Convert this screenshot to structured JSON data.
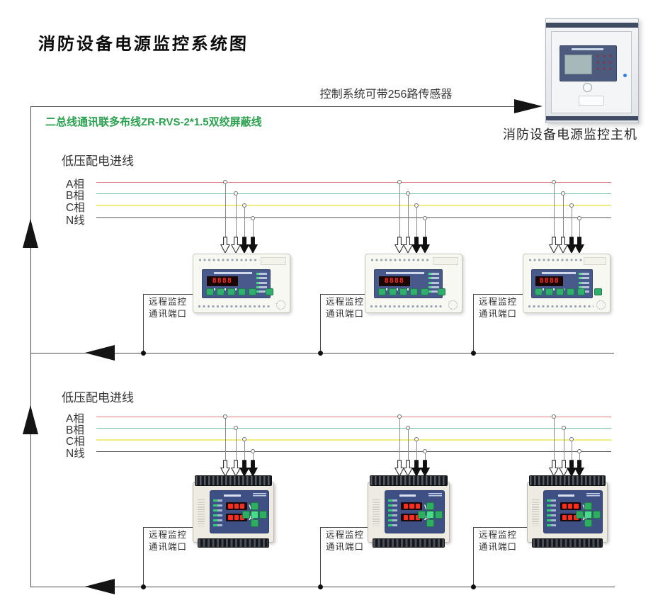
{
  "title": "消防设备电源监控系统图",
  "header": {
    "sensor_capacity_note": "控制系统可带256路传感器",
    "bus_wiring_label": "二总线通讯联多布线ZR-RVS-2*1.5双绞屏蔽线"
  },
  "main_unit": {
    "label": "消防设备电源监控主机"
  },
  "device_row1": {
    "display_value": "8888"
  },
  "device_row2": {
    "voltage_label": "V",
    "current_label": "A"
  },
  "sections": [
    {
      "incoming_label": "低压配电进线",
      "phases": [
        {
          "label": "A相"
        },
        {
          "label": "B相"
        },
        {
          "label": "C相"
        },
        {
          "label": "N线"
        }
      ],
      "devices": [
        {
          "port_label_line1": "远程监控",
          "port_label_line2": "通讯端口"
        },
        {
          "port_label_line1": "远程监控",
          "port_label_line2": "通讯端口"
        },
        {
          "port_label_line1": "远程监控",
          "port_label_line2": "通讯端口"
        }
      ]
    },
    {
      "incoming_label": "低压配电进线",
      "phases": [
        {
          "label": "A相"
        },
        {
          "label": "B相"
        },
        {
          "label": "C相"
        },
        {
          "label": "N线"
        }
      ],
      "devices": [
        {
          "port_label_line1": "远程监控",
          "port_label_line2": "通讯端口"
        },
        {
          "port_label_line1": "远程监控",
          "port_label_line2": "通讯端口"
        },
        {
          "port_label_line1": "远程监控",
          "port_label_line2": "通讯端口"
        }
      ]
    }
  ],
  "colors": {
    "phase_a": "#e57f7f",
    "phase_b": "#72c3a5",
    "phase_c": "#f0ec7f",
    "phase_n": "#55554f",
    "wire": "#4c4c48",
    "green_text": "#2ba14f",
    "panel_navy": "#46578a",
    "led_red": "#ff2d1e",
    "button_green": "#2fae6e"
  }
}
